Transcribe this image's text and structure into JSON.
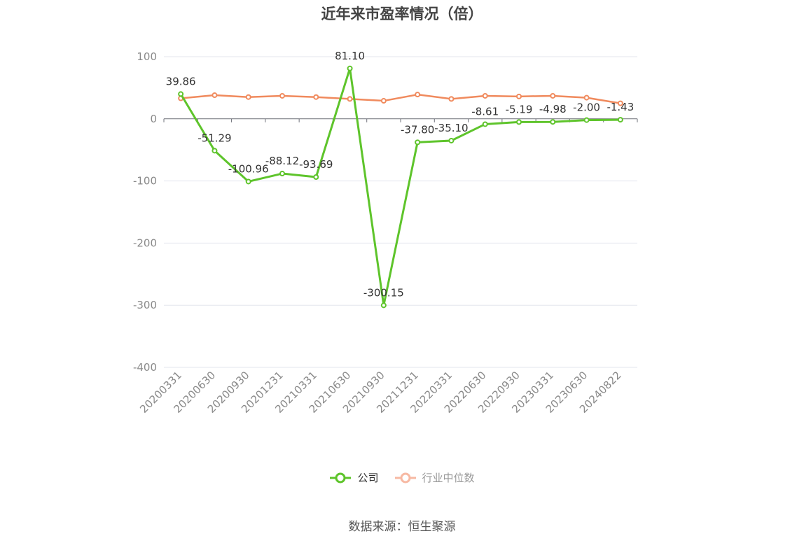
{
  "title": "近年来市盈率情况（倍）",
  "source": "数据来源：恒生聚源",
  "colors": {
    "company": "#5ec42b",
    "industry": "#f08a5d",
    "industry_legend": "#f7b9a3"
  },
  "chart_data": {
    "type": "line",
    "title": "近年来市盈率情况（倍）",
    "categories": [
      "20200331",
      "20200630",
      "20200930",
      "20201231",
      "20210331",
      "20210630",
      "20210930",
      "20211231",
      "20220331",
      "20220630",
      "20220930",
      "20230331",
      "20230630",
      "20240822"
    ],
    "series": [
      {
        "name": "公司",
        "values": [
          39.86,
          -51.29,
          -100.96,
          -88.12,
          -93.69,
          81.1,
          -300.15,
          -37.8,
          -35.1,
          -8.61,
          -5.19,
          -4.98,
          -2.0,
          -1.43
        ],
        "labels": [
          "39.86",
          "-51.29",
          "-100.96",
          "-88.12",
          "-93.69",
          "81.10",
          "-300.15",
          "-37.80",
          "-35.10",
          "-8.61",
          "-5.19",
          "-4.98",
          "-2.00",
          "-1.43"
        ]
      },
      {
        "name": "行业中位数",
        "values": [
          33,
          38,
          35,
          37,
          35,
          32,
          29,
          39,
          32,
          37,
          36,
          37,
          34,
          25
        ]
      }
    ],
    "ylim": [
      -400,
      100
    ],
    "yticks": [
      100,
      0,
      -100,
      -200,
      -300,
      -400
    ],
    "grid": true,
    "legend_position": "bottom"
  }
}
